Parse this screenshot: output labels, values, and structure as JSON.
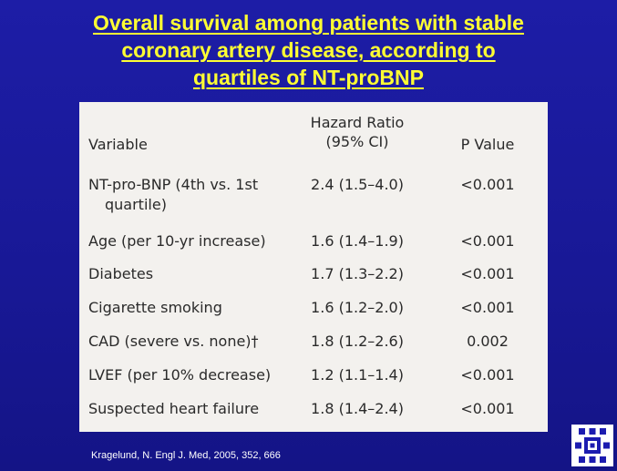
{
  "title": {
    "line1": "Overall survival among patients with stable",
    "line2": "coronary artery disease, according to",
    "line3": "quartiles of NT-proBNP"
  },
  "table": {
    "headers": {
      "variable": "Variable",
      "hazard_ratio_line1": "Hazard Ratio",
      "hazard_ratio_line2": "(95% CI)",
      "p_value": "P Value"
    },
    "rows": [
      {
        "variable": "NT-pro-BNP (4th vs. 1st",
        "variable_cont": "quartile)",
        "hr": "2.4 (1.5–4.0)",
        "p": "<0.001"
      },
      {
        "variable": "Age (per 10-yr increase)",
        "hr": "1.6 (1.4–1.9)",
        "p": "<0.001"
      },
      {
        "variable": "Diabetes",
        "hr": "1.7 (1.3–2.2)",
        "p": "<0.001"
      },
      {
        "variable": "Cigarette smoking",
        "hr": "1.6 (1.2–2.0)",
        "p": "<0.001"
      },
      {
        "variable": "CAD (severe vs. none)†",
        "hr": "1.8 (1.2–2.6)",
        "p": "0.002"
      },
      {
        "variable": "LVEF (per 10% decrease)",
        "hr": "1.2 (1.1–1.4)",
        "p": "<0.001"
      },
      {
        "variable": "Suspected heart failure",
        "hr": "1.8 (1.4–2.4)",
        "p": "<0.001"
      }
    ]
  },
  "citation": "Kragelund, N. Engl J. Med, 2005, 352, 666",
  "colors": {
    "background": "#1a1a9a",
    "title": "#ffff33",
    "table_bg": "#f3f1ee",
    "logo_blue": "#1c1cb0"
  },
  "logo_icon": "institution-logo-icon"
}
